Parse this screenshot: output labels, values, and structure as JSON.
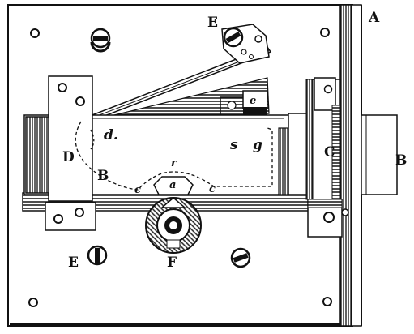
{
  "figure": {
    "subject": "Lock mechanism engraving",
    "labels": {
      "A": "A",
      "B_outer": "B",
      "B_bolt": "B",
      "C": "C",
      "D": "D",
      "E_top": "E",
      "E_bottom": "E",
      "F": "F",
      "a": "a",
      "c_left": "c",
      "c_right": "c",
      "d": "d.",
      "e": "e",
      "g": "g",
      "r": "r",
      "s": "s"
    }
  }
}
